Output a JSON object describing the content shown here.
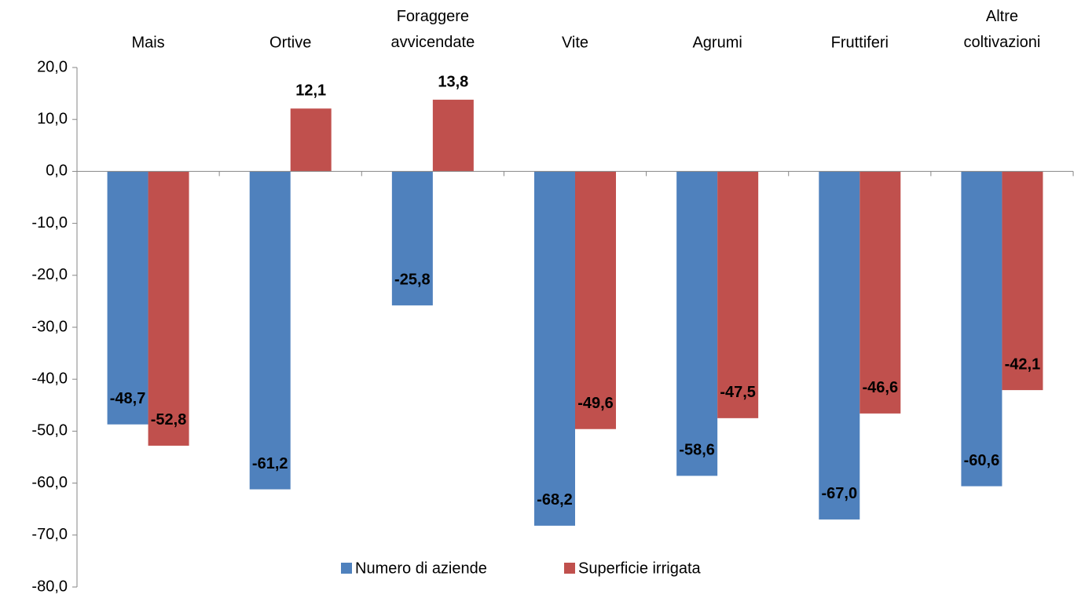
{
  "chart_data": {
    "type": "bar",
    "categories": [
      "Mais",
      "Ortive",
      "Foraggere avvicendate",
      "Vite",
      "Agrumi",
      "Fruttiferi",
      "Altre coltivazioni"
    ],
    "series": [
      {
        "name": "Numero di aziende",
        "color": "#4f81bd",
        "values": [
          -48.7,
          -61.2,
          -25.8,
          -68.2,
          -58.6,
          -67.0,
          -60.6
        ],
        "value_labels": [
          "-48,7",
          "-61,2",
          "-25,8",
          "-68,2",
          "-58,6",
          "-67,0",
          "-60,6"
        ]
      },
      {
        "name": "Superficie irrigata",
        "color": "#c0504d",
        "values": [
          -52.8,
          12.1,
          13.8,
          -49.6,
          -47.5,
          -46.6,
          -42.1
        ],
        "value_labels": [
          "-52,8",
          "12,1",
          "13,8",
          "-49,6",
          "-47,5",
          "-46,6",
          "-42,1"
        ]
      }
    ],
    "ylim": [
      -80,
      20
    ],
    "yticks": [
      {
        "value": 20,
        "label": "20,0"
      },
      {
        "value": 10,
        "label": "10,0"
      },
      {
        "value": 0,
        "label": "0,0"
      },
      {
        "value": -10,
        "label": "-10,0"
      },
      {
        "value": -20,
        "label": "-20,0"
      },
      {
        "value": -30,
        "label": "-30,0"
      },
      {
        "value": -40,
        "label": "-40,0"
      },
      {
        "value": -50,
        "label": "-50,0"
      },
      {
        "value": -60,
        "label": "-60,0"
      },
      {
        "value": -70,
        "label": "-70,0"
      },
      {
        "value": -80,
        "label": "-80,0"
      }
    ],
    "legend": "bottom",
    "grid": false
  }
}
